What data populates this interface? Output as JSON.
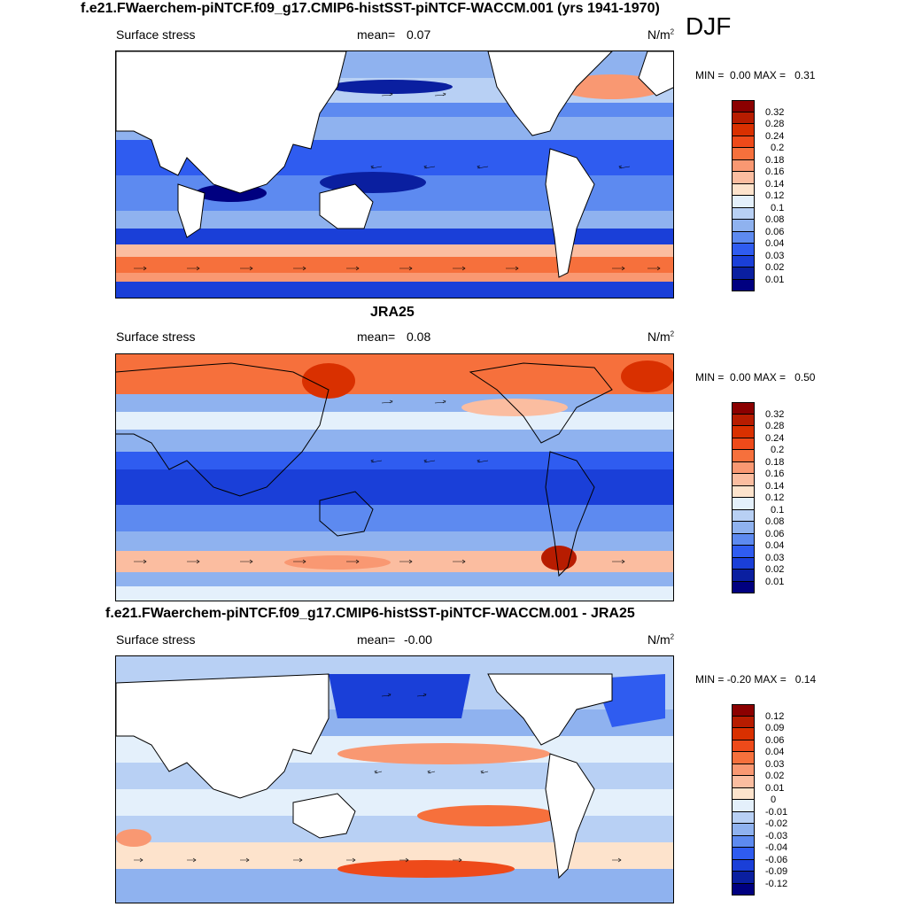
{
  "season": "DJF",
  "panels": [
    {
      "id": "model",
      "title": "f.e21.FWaerchem-piNTCF.f09_g17.CMIP6-histSST-piNTCF-WACCM.001 (yrs 1941-1970)",
      "variable": "Surface stress",
      "mean_label": "mean=",
      "mean_value": "0.07",
      "units": "N/m",
      "units_sup": "2",
      "min_label": "MIN =",
      "min_value": "0.00",
      "max_label": "MAX =",
      "max_value": "0.31",
      "levels": [
        "0.32",
        "0.28",
        "0.24",
        "0.2",
        "0.18",
        "0.16",
        "0.14",
        "0.12",
        "0.1",
        "0.08",
        "0.06",
        "0.04",
        "0.03",
        "0.02",
        "0.01"
      ],
      "colors": [
        "#8b0000",
        "#b71c00",
        "#d93000",
        "#ee4a1a",
        "#f6703c",
        "#f99872",
        "#fbbda0",
        "#fde3cc",
        "#e4f0fb",
        "#b8d0f4",
        "#8fb2ef",
        "#5d8af0",
        "#2f5cf0",
        "#1a3fd8",
        "#0a1fa0",
        "#000080"
      ]
    },
    {
      "id": "obs",
      "title": "JRA25",
      "variable": "Surface stress",
      "mean_label": "mean=",
      "mean_value": "0.08",
      "units": "N/m",
      "units_sup": "2",
      "min_label": "MIN =",
      "min_value": "0.00",
      "max_label": "MAX =",
      "max_value": "0.50",
      "levels": [
        "0.32",
        "0.28",
        "0.24",
        "0.2",
        "0.18",
        "0.16",
        "0.14",
        "0.12",
        "0.1",
        "0.08",
        "0.06",
        "0.04",
        "0.03",
        "0.02",
        "0.01"
      ],
      "colors": [
        "#8b0000",
        "#b71c00",
        "#d93000",
        "#ee4a1a",
        "#f6703c",
        "#f99872",
        "#fbbda0",
        "#fde3cc",
        "#e4f0fb",
        "#b8d0f4",
        "#8fb2ef",
        "#5d8af0",
        "#2f5cf0",
        "#1a3fd8",
        "#0a1fa0",
        "#000080"
      ]
    },
    {
      "id": "diff",
      "title": "f.e21.FWaerchem-piNTCF.f09_g17.CMIP6-histSST-piNTCF-WACCM.001 - JRA25",
      "variable": "Surface stress",
      "mean_label": "mean=",
      "mean_value": "-0.00",
      "units": "N/m",
      "units_sup": "2",
      "min_label": "MIN =",
      "min_value": "-0.20",
      "max_label": "MAX =",
      "max_value": "0.14",
      "levels": [
        "0.12",
        "0.09",
        "0.06",
        "0.04",
        "0.03",
        "0.02",
        "0.01",
        "0",
        "-0.01",
        "-0.02",
        "-0.03",
        "-0.04",
        "-0.06",
        "-0.09",
        "-0.12"
      ],
      "colors": [
        "#8b0000",
        "#b71c00",
        "#d93000",
        "#ee4a1a",
        "#f6703c",
        "#f99872",
        "#fbbda0",
        "#fde3cc",
        "#e4f0fb",
        "#b8d0f4",
        "#8fb2ef",
        "#5d8af0",
        "#2f5cf0",
        "#1a3fd8",
        "#0a1fa0",
        "#000080"
      ]
    }
  ]
}
